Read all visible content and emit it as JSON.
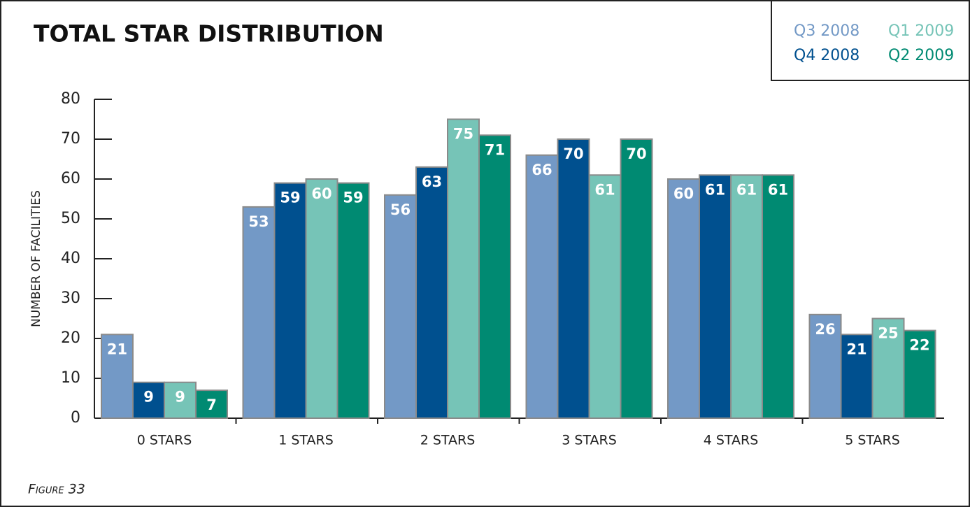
{
  "chart_data": {
    "type": "bar",
    "title": "TOTAL STAR DISTRIBUTION",
    "y_label": "NUMBER OF FACILITIES",
    "footer": "Figure 33",
    "categories": [
      "0 STARS",
      "1 STARS",
      "2 STARS",
      "3 STARS",
      "4 STARS",
      "5 STARS"
    ],
    "series": [
      {
        "name": "Q3 2008",
        "color": "#7399c6",
        "values": [
          21,
          53,
          56,
          66,
          60,
          26
        ]
      },
      {
        "name": "Q4 2008",
        "color": "#00508f",
        "values": [
          9,
          59,
          63,
          70,
          61,
          21
        ]
      },
      {
        "name": "Q1 2009",
        "color": "#76c4b7",
        "values": [
          9,
          60,
          75,
          61,
          61,
          25
        ]
      },
      {
        "name": "Q2 2009",
        "color": "#008a72",
        "values": [
          7,
          59,
          71,
          70,
          61,
          22
        ]
      }
    ],
    "ylim": [
      0,
      80
    ],
    "yticks": [
      0,
      10,
      20,
      30,
      40,
      50,
      60,
      70,
      80
    ],
    "grid": false,
    "legend": "upper right"
  }
}
